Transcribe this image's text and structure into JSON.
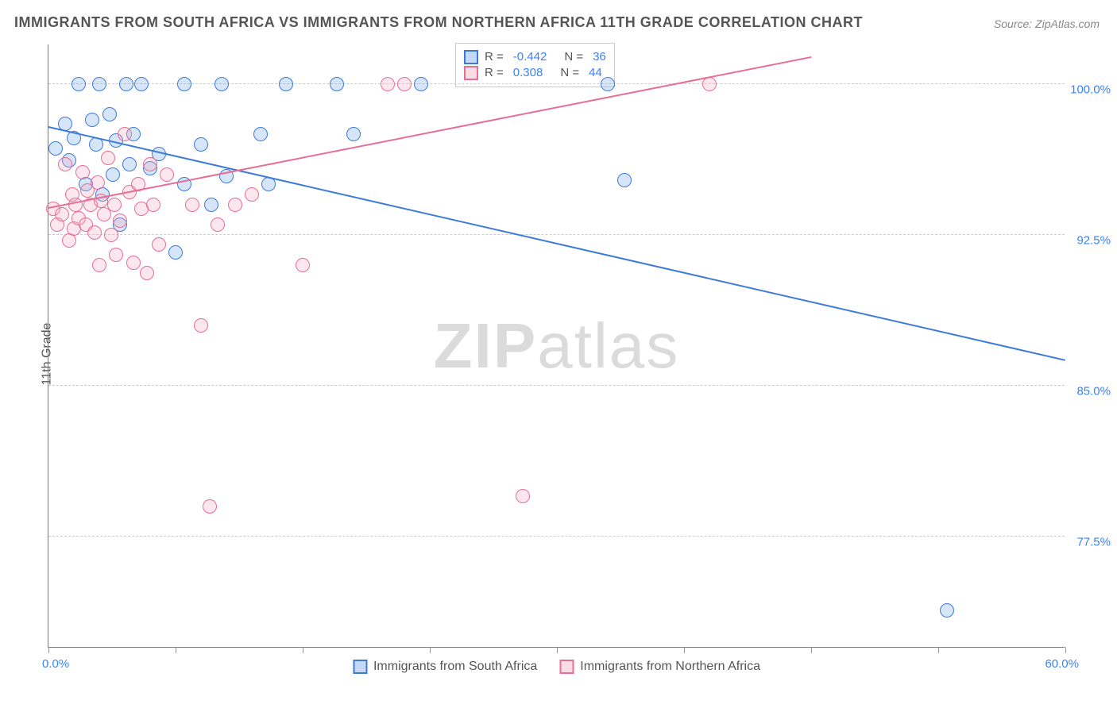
{
  "title": "IMMIGRANTS FROM SOUTH AFRICA VS IMMIGRANTS FROM NORTHERN AFRICA 11TH GRADE CORRELATION CHART",
  "source": "Source: ZipAtlas.com",
  "ylabel": "11th Grade",
  "watermark_a": "ZIP",
  "watermark_b": "atlas",
  "chart": {
    "type": "scatter",
    "xlim": [
      0,
      60
    ],
    "ylim": [
      72,
      102
    ],
    "xlim_labels": {
      "min": "0.0%",
      "max": "60.0%"
    },
    "ytick_labels": [
      "77.5%",
      "85.0%",
      "92.5%",
      "100.0%"
    ],
    "ytick_values": [
      77.5,
      85.0,
      92.5,
      100.0
    ],
    "xtick_values": [
      0,
      7.5,
      15,
      22.5,
      30,
      37.5,
      45,
      52.5,
      60
    ],
    "grid_color": "#cccccc",
    "background_color": "#ffffff",
    "axis_label_color": "#3b82f6",
    "marker_radius": 9,
    "marker_border_width": 1.5,
    "marker_fill_opacity": 0.28,
    "line_width": 2
  },
  "series": [
    {
      "name": "Immigrants from South Africa",
      "color": "#6aa1e6",
      "border": "#3d7bd9",
      "R": "-0.442",
      "N": "36",
      "trend": {
        "x1": 0,
        "y1": 97.8,
        "x2": 60,
        "y2": 86.2
      },
      "points": [
        [
          0.4,
          96.8
        ],
        [
          1.0,
          98.0
        ],
        [
          1.2,
          96.2
        ],
        [
          1.5,
          97.3
        ],
        [
          1.8,
          100.0
        ],
        [
          2.2,
          95.0
        ],
        [
          2.6,
          98.2
        ],
        [
          2.8,
          97.0
        ],
        [
          3.0,
          100.0
        ],
        [
          3.2,
          94.5
        ],
        [
          3.6,
          98.5
        ],
        [
          3.8,
          95.5
        ],
        [
          4.0,
          97.2
        ],
        [
          4.2,
          93.0
        ],
        [
          4.6,
          100.0
        ],
        [
          4.8,
          96.0
        ],
        [
          5.0,
          97.5
        ],
        [
          5.5,
          100.0
        ],
        [
          6.0,
          95.8
        ],
        [
          6.5,
          96.5
        ],
        [
          7.5,
          91.6
        ],
        [
          8.0,
          100.0
        ],
        [
          8.0,
          95.0
        ],
        [
          9.0,
          97.0
        ],
        [
          9.6,
          94.0
        ],
        [
          10.2,
          100.0
        ],
        [
          10.5,
          95.4
        ],
        [
          12.5,
          97.5
        ],
        [
          13.0,
          95.0
        ],
        [
          14.0,
          100.0
        ],
        [
          17.0,
          100.0
        ],
        [
          18.0,
          97.5
        ],
        [
          22.0,
          100.0
        ],
        [
          33.0,
          100.0
        ],
        [
          34.0,
          95.2
        ],
        [
          53.0,
          73.8
        ]
      ]
    },
    {
      "name": "Immigrants from Northern Africa",
      "color": "#f2a8bd",
      "border": "#e86e94",
      "R": "0.308",
      "N": "44",
      "trend": {
        "x1": 0,
        "y1": 93.8,
        "x2": 45,
        "y2": 101.3
      },
      "points": [
        [
          0.3,
          93.8
        ],
        [
          0.5,
          93.0
        ],
        [
          0.8,
          93.5
        ],
        [
          1.0,
          96.0
        ],
        [
          1.2,
          92.2
        ],
        [
          1.4,
          94.5
        ],
        [
          1.5,
          92.8
        ],
        [
          1.6,
          94.0
        ],
        [
          1.8,
          93.3
        ],
        [
          2.0,
          95.6
        ],
        [
          2.2,
          93.0
        ],
        [
          2.3,
          94.7
        ],
        [
          2.5,
          94.0
        ],
        [
          2.7,
          92.6
        ],
        [
          2.9,
          95.1
        ],
        [
          3.0,
          91.0
        ],
        [
          3.1,
          94.2
        ],
        [
          3.3,
          93.5
        ],
        [
          3.5,
          96.3
        ],
        [
          3.7,
          92.5
        ],
        [
          3.9,
          94.0
        ],
        [
          4.0,
          91.5
        ],
        [
          4.2,
          93.2
        ],
        [
          4.5,
          97.5
        ],
        [
          4.8,
          94.6
        ],
        [
          5.0,
          91.1
        ],
        [
          5.3,
          95.0
        ],
        [
          5.5,
          93.8
        ],
        [
          5.8,
          90.6
        ],
        [
          6.0,
          96.0
        ],
        [
          6.2,
          94.0
        ],
        [
          6.5,
          92.0
        ],
        [
          7.0,
          95.5
        ],
        [
          8.5,
          94.0
        ],
        [
          9.0,
          88.0
        ],
        [
          9.5,
          79.0
        ],
        [
          10.0,
          93.0
        ],
        [
          11.0,
          94.0
        ],
        [
          12.0,
          94.5
        ],
        [
          15.0,
          91.0
        ],
        [
          20.0,
          100.0
        ],
        [
          21.0,
          100.0
        ],
        [
          28.0,
          79.5
        ],
        [
          39.0,
          100.0
        ]
      ]
    }
  ],
  "legend_inside": {
    "R_label": "R =",
    "N_label": "N ="
  }
}
